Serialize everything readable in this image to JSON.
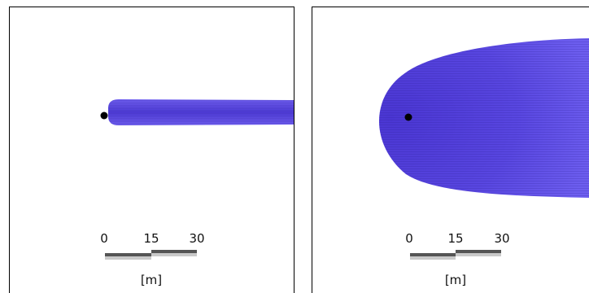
{
  "panels": [
    {
      "id": "left",
      "scale_bar": {
        "ticks": [
          "0",
          "15",
          "30"
        ],
        "unit": "[m]"
      }
    },
    {
      "id": "right",
      "scale_bar": {
        "ticks": [
          "0",
          "15",
          "30"
        ],
        "unit": "[m]"
      }
    }
  ],
  "colors": {
    "plume": "#5a46e0",
    "plume_dark": "#3f2fb4",
    "plume_light": "#7a6cf0",
    "source": "#000000",
    "bar_dark": "#555555",
    "bar_light": "#c9c9c9"
  }
}
